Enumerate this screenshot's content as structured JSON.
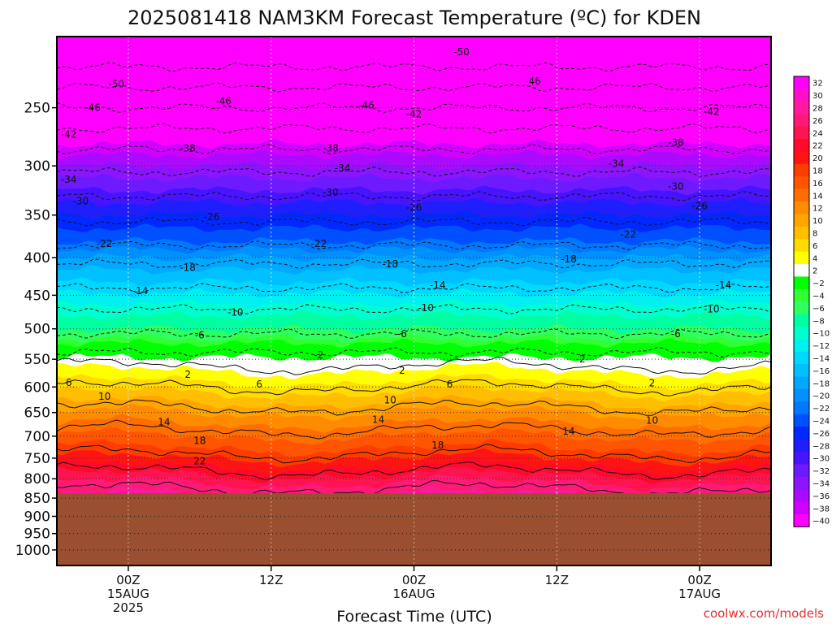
{
  "chart_data": {
    "type": "heatmap",
    "title": "2025081418 NAM3KM Forecast Temperature (ºC) for KDEN",
    "xlabel": "Forecast Time (UTC)",
    "credit": "coolwx.com/models",
    "x_range_hours": [
      -6,
      54
    ],
    "y_axis": {
      "scale": "log",
      "range": [
        1050,
        200
      ],
      "ticks": [
        250,
        300,
        350,
        400,
        450,
        500,
        550,
        600,
        650,
        700,
        750,
        800,
        850,
        900,
        950,
        1000
      ],
      "tick_labels": [
        "250",
        "300",
        "350",
        "400",
        "450",
        "500",
        "550",
        "600",
        "650",
        "700",
        "750",
        "800",
        "850",
        "900",
        "950",
        "1000"
      ]
    },
    "x_ticks": [
      {
        "hour": 0,
        "lines": [
          "00Z",
          "15AUG",
          "2025"
        ]
      },
      {
        "hour": 12,
        "lines": [
          "12Z"
        ]
      },
      {
        "hour": 24,
        "lines": [
          "00Z",
          "16AUG"
        ]
      },
      {
        "hour": 36,
        "lines": [
          "12Z"
        ]
      },
      {
        "hour": 48,
        "lines": [
          "00Z",
          "17AUG"
        ]
      }
    ],
    "surface_pressure": 837,
    "surface_color": "#9a5030",
    "colorbar": {
      "levels": [
        32,
        30,
        28,
        26,
        24,
        22,
        20,
        18,
        16,
        14,
        12,
        10,
        8,
        6,
        4,
        2,
        -2,
        -4,
        -6,
        -8,
        -10,
        -12,
        -14,
        -16,
        -18,
        -20,
        -22,
        -24,
        -26,
        -28,
        -30,
        -32,
        -34,
        -36,
        -38,
        -40
      ],
      "labels": [
        "32",
        "30",
        "28",
        "26",
        "24",
        "22",
        "20",
        "18",
        "16",
        "14",
        "12",
        "10",
        "8",
        "6",
        "4",
        "2",
        "−2",
        "−4",
        "−6",
        "−8",
        "−10",
        "−12",
        "−14",
        "−16",
        "−18",
        "−20",
        "−22",
        "−24",
        "−26",
        "−28",
        "−30",
        "−32",
        "−34",
        "−36",
        "−38",
        "−40"
      ],
      "colors": [
        "#ff00ff",
        "#ff10c8",
        "#ff1a9e",
        "#ff1a78",
        "#ff1450",
        "#ff0a2a",
        "#ff1414",
        "#ff3c00",
        "#ff5500",
        "#ff6e00",
        "#ff8c00",
        "#ffa500",
        "#ffbe00",
        "#ffdc00",
        "#ffff00",
        "#ffffff",
        "#00ff00",
        "#30ff30",
        "#30ff60",
        "#00ffa0",
        "#00ffd0",
        "#00f0f0",
        "#00d8ff",
        "#00c0ff",
        "#00a8ff",
        "#0090ff",
        "#0078ff",
        "#0050ff",
        "#0028ff",
        "#1e1eff",
        "#4614ff",
        "#6e1aff",
        "#8c14ff",
        "#aa0aff",
        "#d200ff",
        "#ff00ff"
      ]
    },
    "temperature_profile": [
      {
        "p": 200,
        "t": -57
      },
      {
        "p": 220,
        "t": -54
      },
      {
        "p": 250,
        "t": -46
      },
      {
        "p": 280,
        "t": -39
      },
      {
        "p": 300,
        "t": -35
      },
      {
        "p": 330,
        "t": -30
      },
      {
        "p": 350,
        "t": -27
      },
      {
        "p": 380,
        "t": -23
      },
      {
        "p": 400,
        "t": -19
      },
      {
        "p": 440,
        "t": -14
      },
      {
        "p": 470,
        "t": -10
      },
      {
        "p": 500,
        "t": -7
      },
      {
        "p": 535,
        "t": -2.5
      },
      {
        "p": 550,
        "t": 0
      },
      {
        "p": 565,
        "t": 2.5
      },
      {
        "p": 600,
        "t": 6
      },
      {
        "p": 630,
        "t": 9
      },
      {
        "p": 660,
        "t": 12
      },
      {
        "p": 700,
        "t": 15
      },
      {
        "p": 740,
        "t": 18
      },
      {
        "p": 780,
        "t": 22
      },
      {
        "p": 810,
        "t": 25
      },
      {
        "p": 840,
        "t": 27
      }
    ],
    "contour_labels": [
      {
        "v": "-50",
        "h": -1,
        "p": 232
      },
      {
        "v": "-50",
        "h": 28,
        "p": 210
      },
      {
        "v": "-46",
        "h": 34,
        "p": 230
      },
      {
        "v": "-46",
        "h": 8,
        "p": 245
      },
      {
        "v": "-46",
        "h": -3,
        "p": 250
      },
      {
        "v": "-46",
        "h": 20,
        "p": 248
      },
      {
        "v": "-42",
        "h": -5,
        "p": 272
      },
      {
        "v": "-42",
        "h": 24,
        "p": 255
      },
      {
        "v": "-42",
        "h": 49,
        "p": 253
      },
      {
        "v": "-38",
        "h": 5,
        "p": 284
      },
      {
        "v": "-38",
        "h": 17,
        "p": 284
      },
      {
        "v": "-38",
        "h": 46,
        "p": 279
      },
      {
        "v": "-34",
        "h": -5,
        "p": 313
      },
      {
        "v": "-34",
        "h": 18,
        "p": 302
      },
      {
        "v": "-34",
        "h": 41,
        "p": 298
      },
      {
        "v": "-30",
        "h": -4,
        "p": 335
      },
      {
        "v": "-30",
        "h": 17,
        "p": 326
      },
      {
        "v": "-30",
        "h": 46,
        "p": 320
      },
      {
        "v": "-26",
        "h": 7,
        "p": 352
      },
      {
        "v": "-26",
        "h": 24,
        "p": 342
      },
      {
        "v": "-26",
        "h": 48,
        "p": 340
      },
      {
        "v": "-22",
        "h": -2,
        "p": 383
      },
      {
        "v": "-22",
        "h": 16,
        "p": 383
      },
      {
        "v": "-22",
        "h": 42,
        "p": 372
      },
      {
        "v": "-18",
        "h": 5,
        "p": 413
      },
      {
        "v": "-18",
        "h": 22,
        "p": 408
      },
      {
        "v": "-18",
        "h": 37,
        "p": 402
      },
      {
        "v": "-14",
        "h": 1,
        "p": 444
      },
      {
        "v": "-14",
        "h": 26,
        "p": 436
      },
      {
        "v": "-14",
        "h": 50,
        "p": 436
      },
      {
        "v": "-10",
        "h": 9,
        "p": 475
      },
      {
        "v": "-10",
        "h": 25,
        "p": 468
      },
      {
        "v": "-10",
        "h": 49,
        "p": 470
      },
      {
        "v": "-6",
        "h": 6,
        "p": 510
      },
      {
        "v": "-6",
        "h": 23,
        "p": 508
      },
      {
        "v": "-6",
        "h": 46,
        "p": 508
      },
      {
        "v": "-2",
        "h": 16,
        "p": 543
      },
      {
        "v": "-2",
        "h": 38,
        "p": 550
      },
      {
        "v": "2",
        "h": 5,
        "p": 577
      },
      {
        "v": "2",
        "h": 23,
        "p": 570
      },
      {
        "v": "2",
        "h": 44,
        "p": 593
      },
      {
        "v": "6",
        "h": -5,
        "p": 592
      },
      {
        "v": "6",
        "h": 11,
        "p": 595
      },
      {
        "v": "6",
        "h": 27,
        "p": 595
      },
      {
        "v": "10",
        "h": -2,
        "p": 618
      },
      {
        "v": "10",
        "h": 22,
        "p": 625
      },
      {
        "v": "10",
        "h": 44,
        "p": 666
      },
      {
        "v": "14",
        "h": 3,
        "p": 670
      },
      {
        "v": "14",
        "h": 21,
        "p": 665
      },
      {
        "v": "14",
        "h": 37,
        "p": 690
      },
      {
        "v": "18",
        "h": 6,
        "p": 710
      },
      {
        "v": "18",
        "h": 26,
        "p": 720
      },
      {
        "v": "22",
        "h": 6,
        "p": 757
      }
    ]
  }
}
